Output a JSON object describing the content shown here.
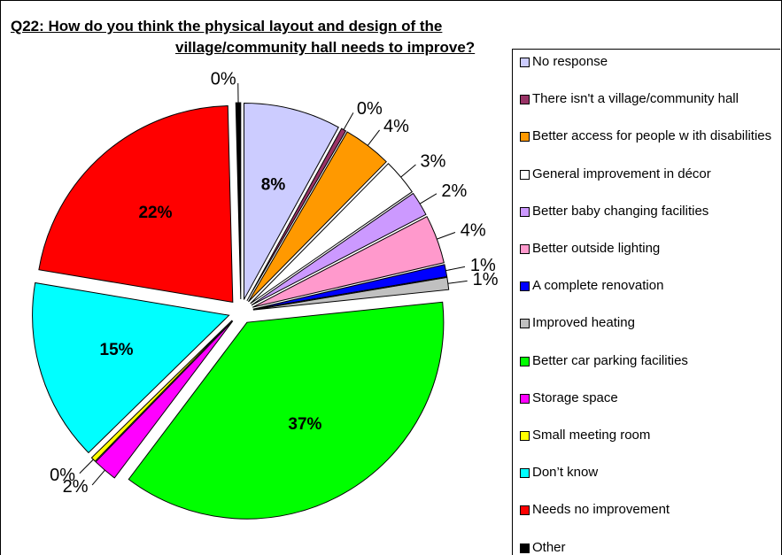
{
  "chart_data": {
    "type": "pie",
    "title_lines": [
      "Q22:  How do you think the physical layout and design of the",
      "village/community hall needs to improve?"
    ],
    "categories": [
      "No response",
      "There isn't a village/community hall",
      "Better access for people w ith disabilities",
      "General improvement in décor",
      "Better baby changing facilities",
      "Better outside lighting",
      "A complete renovation",
      "Improved heating",
      "Better car parking facilities",
      "Storage space",
      "Small meeting room",
      "Don’t know",
      "Needs no improvement",
      "Other"
    ],
    "values": [
      8,
      0.4,
      4,
      3,
      2,
      4,
      1,
      1,
      37,
      2,
      0.4,
      15,
      22,
      0.4
    ],
    "value_labels": [
      "8%",
      "0%",
      "4%",
      "3%",
      "2%",
      "4%",
      "1%",
      "1%",
      "37%",
      "2%",
      "0%",
      "15%",
      "22%",
      "0%"
    ],
    "colors": [
      "#ccccff",
      "#993366",
      "#ff9900",
      "#ffffff",
      "#cc99ff",
      "#ff99cc",
      "#0000ff",
      "#c0c0c0",
      "#00ff00",
      "#ff00ff",
      "#ffff00",
      "#00ffff",
      "#ff0000",
      "#000000"
    ],
    "legend": "right"
  }
}
